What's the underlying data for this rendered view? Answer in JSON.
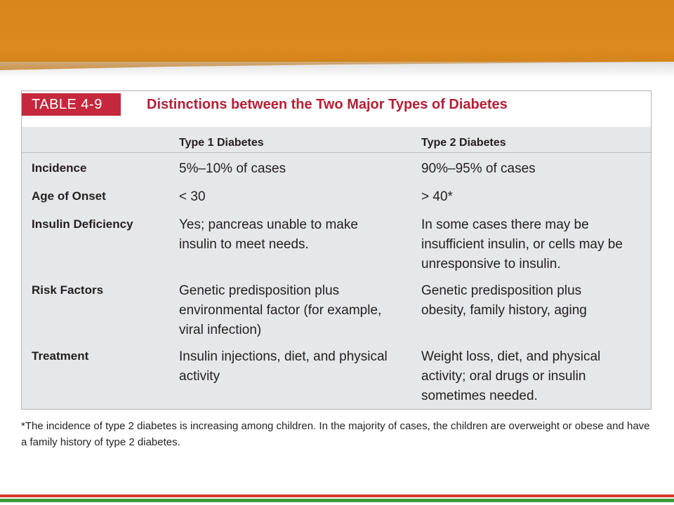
{
  "colors": {
    "band_orange": "#d9861c",
    "badge_red": "#c5283d",
    "title_red": "#b32036",
    "table_bg": "#e6e7e8",
    "rule_red": "#d63b2c",
    "rule_green": "#3f9b3a"
  },
  "table": {
    "badge": "TABLE 4-9",
    "title": "Distinctions between the Two Major Types of Diabetes",
    "columns": [
      "Type 1 Diabetes",
      "Type 2 Diabetes"
    ],
    "rows": [
      {
        "label": "Incidence",
        "type1": "5%–10% of cases",
        "type2": "90%–95% of cases"
      },
      {
        "label": "Age of Onset",
        "type1": "< 30",
        "type2": "> 40*"
      },
      {
        "label": "Insulin Deficiency",
        "type1": "Yes; pancreas unable to make insulin to meet needs.",
        "type2": "In some cases there may be insufficient insulin, or cells may be unresponsive to insulin."
      },
      {
        "label": "Risk Factors",
        "type1": "Genetic predisposition plus environmental factor (for example, viral infection)",
        "type2": "Genetic predisposition plus obesity, family history, aging"
      },
      {
        "label": "Treatment",
        "type1": "Insulin injections, diet, and physical activity",
        "type2": "Weight loss, diet, and physical activity; oral drugs or insulin sometimes needed."
      }
    ],
    "footnote": "*The incidence of type 2 diabetes is increasing among children. In the majority of cases, the children are overweight or obese and have a family history of type 2 diabetes."
  }
}
